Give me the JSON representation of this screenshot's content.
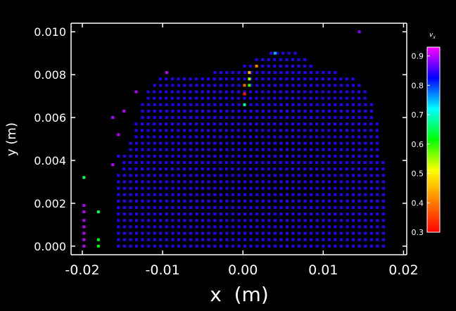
{
  "chart_data": {
    "type": "scatter",
    "title": "",
    "xlabel": "x  (m)",
    "ylabel": "y (m)",
    "xlim": [
      -0.0214,
      0.0204
    ],
    "ylim": [
      -0.0004,
      0.0104
    ],
    "x_ticks": [
      {
        "value": -0.02,
        "label": "-0.02"
      },
      {
        "value": -0.01,
        "label": "-0.01"
      },
      {
        "value": 0.0,
        "label": "0.00"
      },
      {
        "value": 0.01,
        "label": "0.01"
      },
      {
        "value": 0.02,
        "label": "0.02"
      }
    ],
    "y_ticks": [
      {
        "value": 0.0,
        "label": "0.000"
      },
      {
        "value": 0.002,
        "label": "0.002"
      },
      {
        "value": 0.004,
        "label": "0.004"
      },
      {
        "value": 0.006,
        "label": "0.006"
      },
      {
        "value": 0.008,
        "label": "0.008"
      },
      {
        "value": 0.01,
        "label": "0.010"
      }
    ],
    "grid": false,
    "background": "#000000",
    "axis_color": "#ffffff",
    "colorbar": {
      "label": "v",
      "label_subscript": "x",
      "min": 0.3,
      "max": 0.93,
      "ticks": [
        {
          "value": 0.9,
          "label": "0.9"
        },
        {
          "value": 0.8,
          "label": "0.8"
        },
        {
          "value": 0.7,
          "label": "0.7"
        },
        {
          "value": 0.6,
          "label": "0.6"
        },
        {
          "value": 0.5,
          "label": "0.5"
        },
        {
          "value": 0.4,
          "label": "0.4"
        },
        {
          "value": 0.3,
          "label": "0.3"
        }
      ],
      "colormap": [
        "#ff0000",
        "#ff8000",
        "#ffff00",
        "#00ff00",
        "#00ffff",
        "#0000ff",
        "#ff00ff"
      ]
    },
    "point_grid": {
      "dx": 0.00075,
      "dy": 0.0003,
      "default_value": 0.84,
      "row_extents": [
        {
          "y": 0.0,
          "x_min": -0.0155,
          "x_max": 0.0175
        },
        {
          "y": 0.0003,
          "x_min": -0.0155,
          "x_max": 0.0175
        },
        {
          "y": 0.0006,
          "x_min": -0.0155,
          "x_max": 0.0175
        },
        {
          "y": 0.0009,
          "x_min": -0.0155,
          "x_max": 0.0175
        },
        {
          "y": 0.0012,
          "x_min": -0.0155,
          "x_max": 0.0175
        },
        {
          "y": 0.0015,
          "x_min": -0.0155,
          "x_max": 0.0175
        },
        {
          "y": 0.0018,
          "x_min": -0.0155,
          "x_max": 0.0175
        },
        {
          "y": 0.0021,
          "x_min": -0.0155,
          "x_max": 0.0175
        },
        {
          "y": 0.0024,
          "x_min": -0.0155,
          "x_max": 0.0175
        },
        {
          "y": 0.0027,
          "x_min": -0.0155,
          "x_max": 0.0175
        },
        {
          "y": 0.003,
          "x_min": -0.0155,
          "x_max": 0.0175
        },
        {
          "y": 0.0033,
          "x_min": -0.0155,
          "x_max": 0.0175
        },
        {
          "y": 0.0036,
          "x_min": -0.0148,
          "x_max": 0.0175
        },
        {
          "y": 0.0039,
          "x_min": -0.0148,
          "x_max": 0.0175
        },
        {
          "y": 0.0042,
          "x_min": -0.0155,
          "x_max": 0.0168
        },
        {
          "y": 0.0045,
          "x_min": -0.014,
          "x_max": 0.0168
        },
        {
          "y": 0.0048,
          "x_min": -0.014,
          "x_max": 0.0168
        },
        {
          "y": 0.0051,
          "x_min": -0.0133,
          "x_max": 0.0168
        },
        {
          "y": 0.0054,
          "x_min": -0.0133,
          "x_max": 0.0168
        },
        {
          "y": 0.0057,
          "x_min": -0.0133,
          "x_max": 0.0168
        },
        {
          "y": 0.006,
          "x_min": -0.0125,
          "x_max": 0.016
        },
        {
          "y": 0.0063,
          "x_min": -0.0125,
          "x_max": 0.016
        },
        {
          "y": 0.0066,
          "x_min": -0.0125,
          "x_max": 0.016
        },
        {
          "y": 0.0069,
          "x_min": -0.0118,
          "x_max": 0.0153
        },
        {
          "y": 0.0072,
          "x_min": -0.0118,
          "x_max": 0.0153
        },
        {
          "y": 0.0075,
          "x_min": -0.011,
          "x_max": 0.0145
        },
        {
          "y": 0.0078,
          "x_min": -0.0103,
          "x_max": 0.0138
        },
        {
          "y": 0.0081,
          "x_min": -0.0035,
          "x_max": 0.0115
        },
        {
          "y": 0.0084,
          "x_min": 0.0002,
          "x_max": 0.009
        },
        {
          "y": 0.0087,
          "x_min": 0.0017,
          "x_max": 0.008
        },
        {
          "y": 0.009,
          "x_min": 0.0035,
          "x_max": 0.0065
        }
      ]
    },
    "special_points": [
      {
        "x": -0.0095,
        "y": 0.0081,
        "v": 0.9
      },
      {
        "x": -0.0133,
        "y": 0.0072,
        "v": 0.9
      },
      {
        "x": -0.0148,
        "y": 0.0063,
        "v": 0.9
      },
      {
        "x": -0.0162,
        "y": 0.006,
        "v": 0.9
      },
      {
        "x": -0.0155,
        "y": 0.0052,
        "v": 0.9
      },
      {
        "x": -0.0162,
        "y": 0.0038,
        "v": 0.9
      },
      {
        "x": 0.0008,
        "y": 0.0081,
        "v": 0.45
      },
      {
        "x": 0.0017,
        "y": 0.0084,
        "v": 0.4
      },
      {
        "x": 0.0008,
        "y": 0.0078,
        "v": 0.55
      },
      {
        "x": 0.0002,
        "y": 0.0075,
        "v": 0.38
      },
      {
        "x": 0.0008,
        "y": 0.0075,
        "v": 0.6
      },
      {
        "x": 0.0002,
        "y": 0.0071,
        "v": 0.32
      },
      {
        "x": 0.0002,
        "y": 0.0066,
        "v": 0.68
      },
      {
        "x": 0.004,
        "y": 0.009,
        "v": 0.75
      },
      {
        "x": 0.0145,
        "y": 0.01,
        "v": 0.88
      },
      {
        "x": -0.0198,
        "y": 0.0032,
        "v": 0.65
      },
      {
        "x": -0.0198,
        "y": 0.0019,
        "v": 0.9
      },
      {
        "x": -0.0198,
        "y": 0.0016,
        "v": 0.9
      },
      {
        "x": -0.0198,
        "y": 0.0012,
        "v": 0.9
      },
      {
        "x": -0.0198,
        "y": 0.0009,
        "v": 0.9
      },
      {
        "x": -0.0198,
        "y": 0.0006,
        "v": 0.9
      },
      {
        "x": -0.0198,
        "y": 0.0003,
        "v": 0.9
      },
      {
        "x": -0.0198,
        "y": 0.0,
        "v": 0.9
      },
      {
        "x": -0.018,
        "y": 0.0016,
        "v": 0.65
      },
      {
        "x": -0.018,
        "y": 0.0003,
        "v": 0.62
      },
      {
        "x": -0.018,
        "y": 0.0,
        "v": 0.62
      }
    ]
  }
}
